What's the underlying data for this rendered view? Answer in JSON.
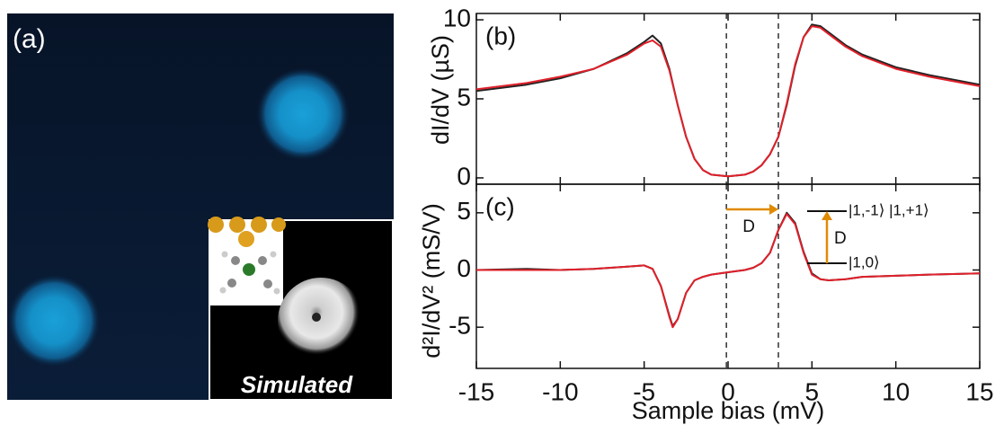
{
  "image": {
    "label": "(a)",
    "inset_label": "Simulated"
  },
  "chart_data": [
    {
      "type": "line",
      "label": "(b)",
      "y_label": "dI/dV (µS)",
      "x": [
        -15,
        -12,
        -10,
        -8,
        -6,
        -5,
        -4.5,
        -4,
        -3.5,
        -3,
        -2.5,
        -2,
        -1.5,
        -1,
        0,
        1,
        1.5,
        2,
        2.5,
        3,
        3.5,
        4,
        4.5,
        5,
        5.5,
        6,
        7,
        8,
        10,
        12,
        15
      ],
      "series": [
        {
          "color": "#222222",
          "values": [
            5.5,
            5.9,
            6.3,
            6.9,
            7.9,
            8.6,
            9.0,
            8.5,
            6.9,
            4.6,
            2.6,
            1.2,
            0.5,
            0.2,
            0.1,
            0.2,
            0.4,
            0.8,
            1.5,
            2.6,
            4.6,
            7.1,
            8.9,
            9.7,
            9.6,
            9.2,
            8.4,
            7.8,
            7.0,
            6.5,
            5.9
          ]
        },
        {
          "color": "#e0202a",
          "values": [
            5.6,
            6.0,
            6.4,
            6.9,
            7.8,
            8.5,
            8.7,
            8.3,
            6.8,
            4.6,
            2.6,
            1.2,
            0.5,
            0.2,
            0.1,
            0.2,
            0.4,
            0.8,
            1.5,
            2.6,
            4.7,
            7.2,
            8.9,
            9.6,
            9.5,
            9.1,
            8.3,
            7.7,
            6.9,
            6.4,
            5.8
          ]
        }
      ],
      "xlim": [
        -15,
        15
      ],
      "xticks": [
        -15,
        -10,
        -5,
        0,
        5,
        10,
        15
      ],
      "show_xtick_labels": false,
      "ylim": [
        -0.4,
        10.4
      ],
      "yticks": [
        0,
        5,
        10
      ],
      "vlines": [
        -0.1,
        3.0
      ]
    },
    {
      "type": "line",
      "label": "(c)",
      "y_label": "d²I/dV² (mS/V)",
      "x_label": "Sample bias (mV)",
      "x": [
        -15,
        -12,
        -10,
        -8,
        -6,
        -5,
        -4.5,
        -4,
        -3.5,
        -3.3,
        -3,
        -2.5,
        -2,
        -1.5,
        -1,
        0,
        1,
        1.5,
        2,
        2.5,
        3,
        3.5,
        4,
        4.5,
        5,
        5.5,
        6,
        7,
        8,
        10,
        12,
        15
      ],
      "series": [
        {
          "color": "#222222",
          "values": [
            0,
            0.1,
            0,
            0.1,
            0.3,
            0.4,
            0.1,
            -1.4,
            -4,
            -4.9,
            -4.3,
            -2,
            -0.9,
            -0.6,
            -0.4,
            -0.2,
            0,
            0.2,
            0.6,
            1.5,
            3.5,
            5.0,
            4.1,
            1.6,
            -0.3,
            -0.8,
            -0.9,
            -0.8,
            -0.6,
            -0.5,
            -0.4,
            -0.3
          ]
        },
        {
          "color": "#e0202a",
          "values": [
            0,
            0,
            0,
            0.1,
            0.3,
            0.4,
            0.1,
            -1.4,
            -4.1,
            -5.0,
            -4.3,
            -2,
            -0.9,
            -0.6,
            -0.4,
            -0.2,
            0,
            0.2,
            0.6,
            1.5,
            3.5,
            4.9,
            4.0,
            1.5,
            -0.4,
            -0.8,
            -0.9,
            -0.8,
            -0.6,
            -0.5,
            -0.4,
            -0.3
          ]
        }
      ],
      "xlim": [
        -15,
        15
      ],
      "xticks": [
        -15,
        -10,
        -5,
        0,
        5,
        10,
        15
      ],
      "show_xtick_labels": true,
      "ylim": [
        -8.6,
        7.5
      ],
      "yticks": [
        -5,
        0,
        5
      ],
      "vlines": [
        -0.1,
        3.0
      ],
      "arrow_label": "D",
      "upper_level_label": "|1,-1⟩ |1,+1⟩",
      "lower_level_label": "|1,0⟩",
      "gap_label": "D"
    }
  ]
}
